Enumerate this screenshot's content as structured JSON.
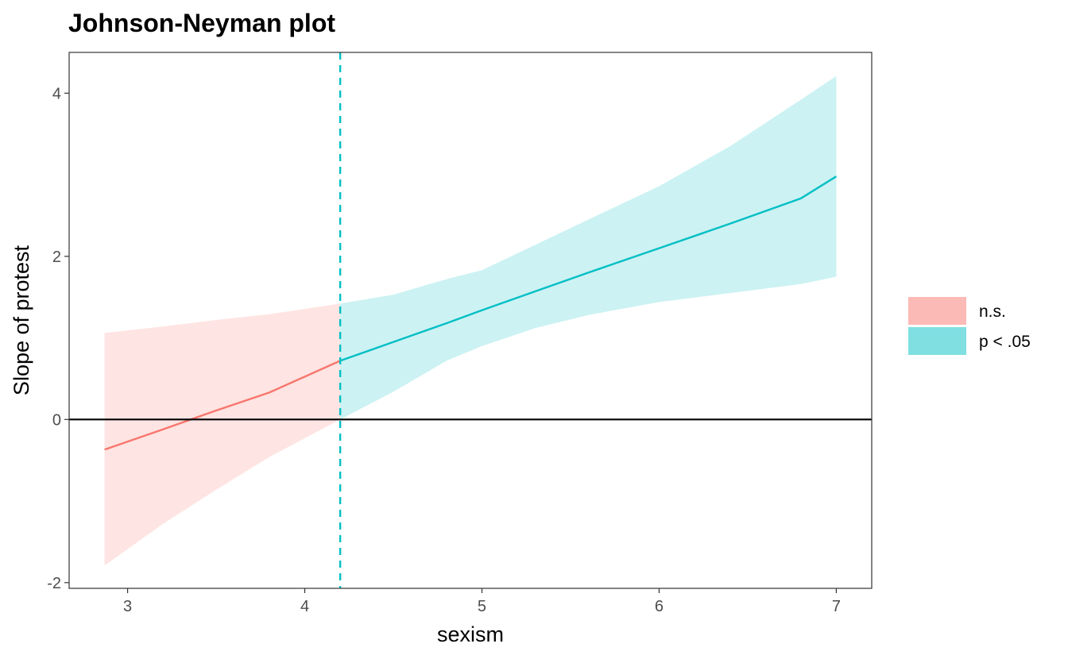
{
  "chart_data": {
    "type": "line",
    "title": "Johnson-Neyman plot",
    "xlabel": "sexism",
    "ylabel": "Slope of protest",
    "xlim": [
      2.67,
      7.2
    ],
    "ylim": [
      -2.07,
      4.5
    ],
    "x_ticks": [
      3,
      4,
      5,
      6,
      7
    ],
    "x_tick_labels": [
      "3",
      "4",
      "5",
      "6",
      "7"
    ],
    "y_ticks": [
      -2,
      0,
      2,
      4
    ],
    "y_tick_labels": [
      "-2",
      "0",
      "2",
      "4"
    ],
    "jn_threshold": 4.2,
    "reference_line_y": 0,
    "grid": false,
    "legend_position": "right",
    "legend": [
      {
        "label": "n.s.",
        "color": "#F8766D"
      },
      {
        "label": "p < .05",
        "color": "#00BFC4"
      }
    ],
    "series": [
      {
        "name": "n.s.",
        "color": "#F8766D",
        "x": [
          2.87,
          3.2,
          3.5,
          3.8,
          4.2
        ],
        "y": [
          -0.37,
          -0.12,
          0.11,
          0.33,
          0.72
        ],
        "lower": [
          -1.79,
          -1.28,
          -0.86,
          -0.46,
          0.0
        ],
        "upper": [
          1.06,
          1.14,
          1.22,
          1.29,
          1.42
        ]
      },
      {
        "name": "p < .05",
        "color": "#00BFC4",
        "x": [
          4.2,
          4.5,
          4.8,
          5.0,
          5.3,
          5.6,
          6.0,
          6.4,
          6.8,
          7.0
        ],
        "y": [
          0.72,
          0.95,
          1.18,
          1.34,
          1.57,
          1.8,
          2.1,
          2.4,
          2.71,
          2.98
        ],
        "lower": [
          0.0,
          0.34,
          0.72,
          0.9,
          1.12,
          1.28,
          1.44,
          1.55,
          1.66,
          1.75
        ],
        "upper": [
          1.42,
          1.53,
          1.72,
          1.83,
          2.14,
          2.45,
          2.86,
          3.35,
          3.92,
          4.21
        ]
      }
    ]
  }
}
